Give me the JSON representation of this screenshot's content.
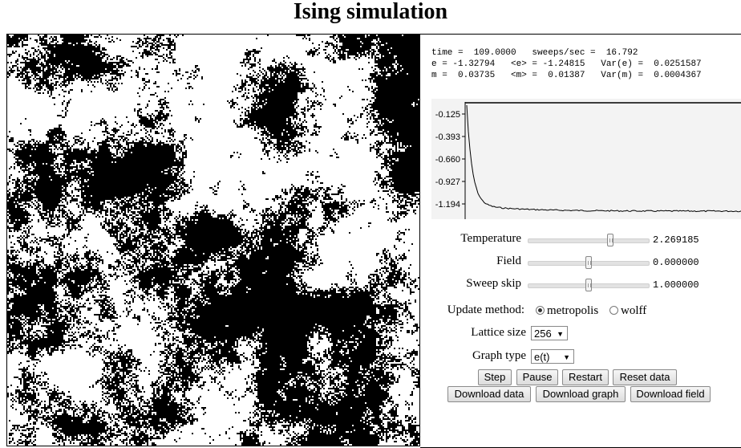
{
  "title": "Ising simulation",
  "stats": {
    "line1": "time =  109.0000   sweeps/sec =  16.792",
    "line2": "e = -1.32794   <e> = -1.24815   Var(e) =  0.0251587",
    "line3": "m =  0.03735   <m> =  0.01387   Var(m) =  0.0004367"
  },
  "graph": {
    "y_ticks": [
      "-0.125",
      "-0.393",
      "-0.660",
      "-0.927",
      "-1.194"
    ]
  },
  "controls": {
    "temperature": {
      "label": "Temperature",
      "value": "2.269185",
      "fraction": 0.69
    },
    "field": {
      "label": "Field",
      "value": "0.000000",
      "fraction": 0.5
    },
    "sweep_skip": {
      "label": "Sweep skip",
      "value": "1.000000",
      "fraction": 0.5
    },
    "update_method": {
      "label": "Update method:",
      "options": [
        "metropolis",
        "wolff"
      ],
      "selected": "metropolis"
    },
    "lattice_size": {
      "label": "Lattice size",
      "value": "256"
    },
    "graph_type": {
      "label": "Graph type",
      "value": "e(t)"
    }
  },
  "buttons": {
    "step": "Step",
    "pause": "Pause",
    "restart": "Restart",
    "reset_data": "Reset data",
    "download_data": "Download data",
    "download_graph": "Download graph",
    "download_field": "Download field"
  },
  "colors": {
    "spin_up": "#ffffff",
    "spin_down": "#000000",
    "graph_bg": "#f3f3f3"
  }
}
